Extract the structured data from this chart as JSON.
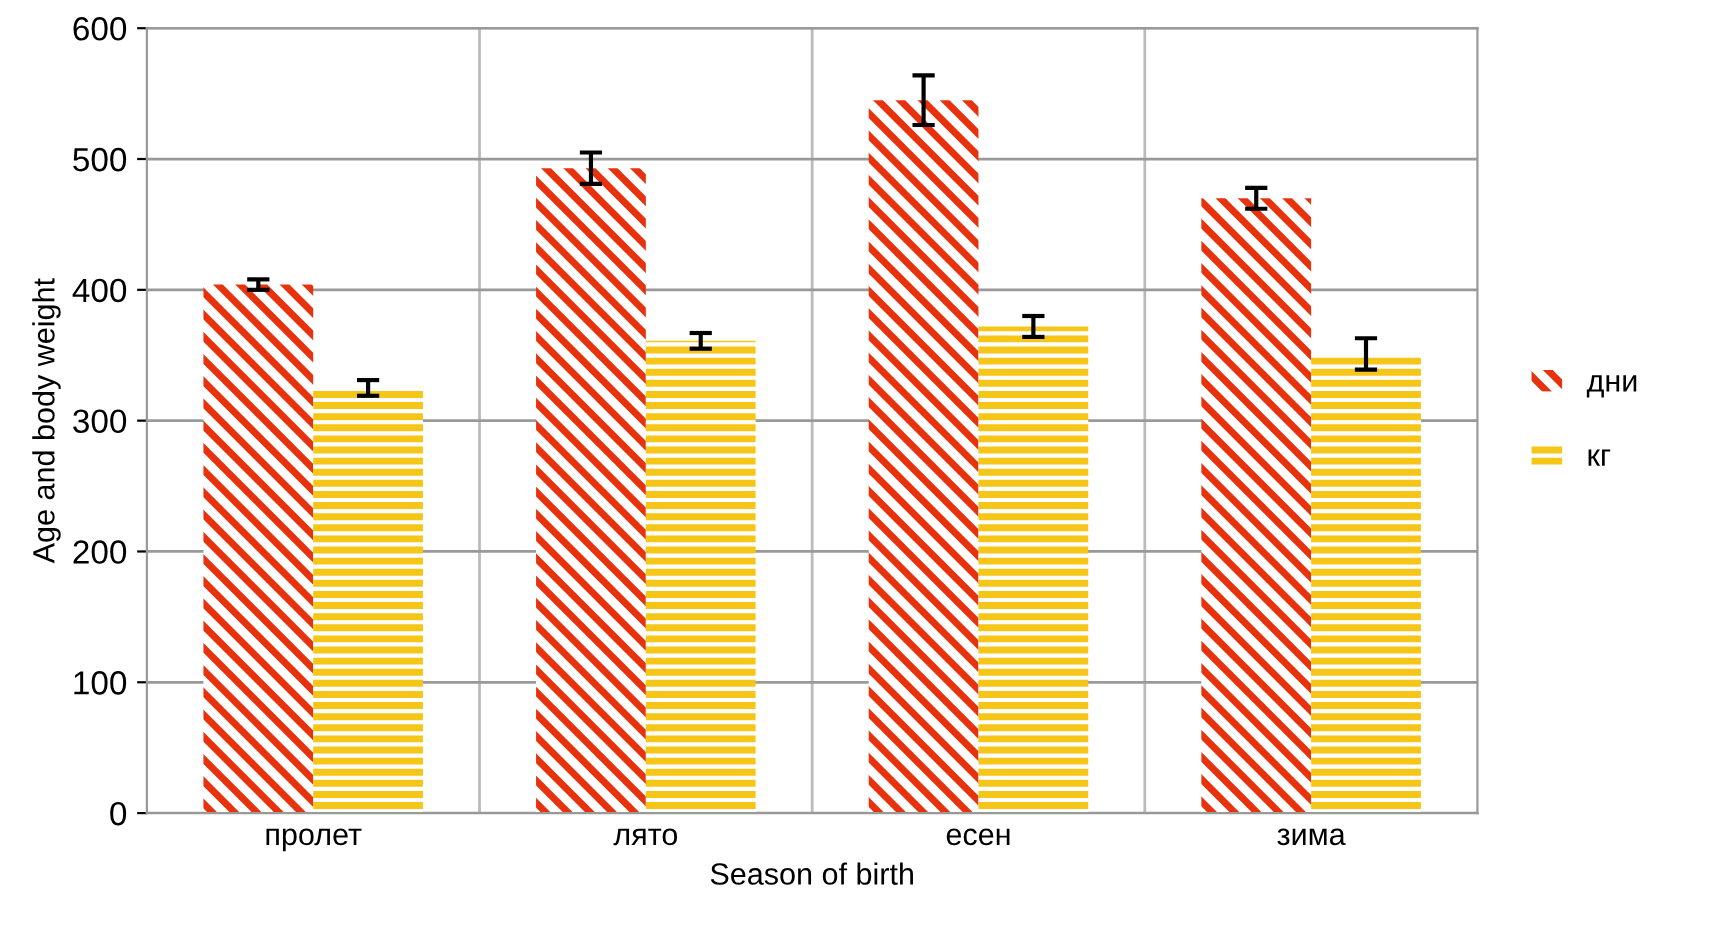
{
  "chart_data": {
    "type": "bar",
    "xlabel": "Season of birth",
    "ylabel": "Age and body weight",
    "categories": [
      "пролет",
      "лято",
      "есен",
      "зима"
    ],
    "series": [
      {
        "name": "дни",
        "color": "#e8320e",
        "values": [
          404,
          493,
          545,
          470
        ],
        "errors": [
          4,
          12,
          19,
          8
        ]
      },
      {
        "name": "кг",
        "color": "#f5c518",
        "values": [
          325,
          361,
          372,
          351
        ],
        "errors": [
          6,
          6,
          8,
          12
        ]
      }
    ],
    "ylim": [
      0,
      600
    ],
    "yticks": [
      0,
      100,
      200,
      300,
      400,
      500,
      600
    ],
    "grid": true,
    "legend": "right"
  }
}
